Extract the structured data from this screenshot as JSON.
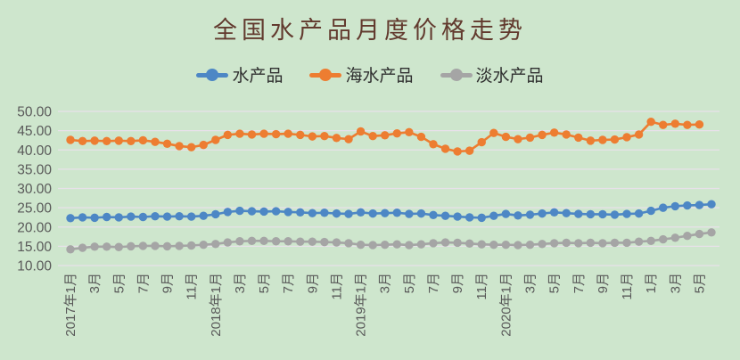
{
  "title": "全国水产品月度价格走势",
  "colors": {
    "background": "#cee6cd",
    "gridline": "#e8e1ea",
    "title_text": "#623a2e",
    "axis_text": "#595959",
    "legend_text": "#2f2f2f"
  },
  "chart_data": {
    "type": "line",
    "title": "全国水产品月度价格走势",
    "xlabel": "",
    "ylabel": "",
    "ylim": [
      10,
      50
    ],
    "y_ticks": [
      "50.00",
      "45.00",
      "40.00",
      "35.00",
      "30.00",
      "25.00",
      "20.00",
      "15.00",
      "10.00"
    ],
    "grid": "horizontal",
    "legend_position": "top",
    "n_points": 54,
    "tick_every": 2,
    "x_tick_labels": [
      "2017年1月",
      "3月",
      "5月",
      "7月",
      "9月",
      "11月",
      "2018年1月",
      "3月",
      "5月",
      "7月",
      "9月",
      "11月",
      "2019年1月",
      "3月",
      "5月",
      "7月",
      "9月",
      "11月",
      "2020年1月",
      "3月",
      "5月",
      "7月",
      "9月",
      "11月",
      "1月",
      "3月",
      "5月"
    ],
    "series": [
      {
        "name": "水产品",
        "color": "#4d87c5",
        "values": [
          22.3,
          22.5,
          22.4,
          22.6,
          22.5,
          22.7,
          22.6,
          22.8,
          22.7,
          22.8,
          22.7,
          22.9,
          23.3,
          23.9,
          24.2,
          24.1,
          24.0,
          24.1,
          23.9,
          23.8,
          23.6,
          23.7,
          23.5,
          23.4,
          23.8,
          23.5,
          23.6,
          23.7,
          23.4,
          23.5,
          23.1,
          22.9,
          22.7,
          22.5,
          22.4,
          22.9,
          23.4,
          23.0,
          23.2,
          23.5,
          23.8,
          23.6,
          23.4,
          23.3,
          23.3,
          23.2,
          23.4,
          23.5,
          24.2,
          25.0,
          25.4,
          25.6,
          25.7,
          25.9
        ]
      },
      {
        "name": "海水产品",
        "color": "#ed7d31",
        "values": [
          42.6,
          42.3,
          42.4,
          42.3,
          42.4,
          42.3,
          42.5,
          42.1,
          41.6,
          41.0,
          40.7,
          41.3,
          42.6,
          43.9,
          44.2,
          44.0,
          44.2,
          44.1,
          44.2,
          43.9,
          43.5,
          43.6,
          43.1,
          42.8,
          44.8,
          43.6,
          43.8,
          44.3,
          44.6,
          43.4,
          41.5,
          40.3,
          39.6,
          39.8,
          42.0,
          44.4,
          43.4,
          42.8,
          43.2,
          43.9,
          44.5,
          44.0,
          43.2,
          42.4,
          42.6,
          42.7,
          43.3,
          44.0,
          47.3,
          46.5,
          46.8,
          46.5,
          46.6,
          null
        ]
      },
      {
        "name": "淡水产品",
        "color": "#a5a5a5",
        "values": [
          14.2,
          14.6,
          14.9,
          14.9,
          14.8,
          15.0,
          15.1,
          15.1,
          15.0,
          15.1,
          15.2,
          15.4,
          15.6,
          16.0,
          16.3,
          16.4,
          16.4,
          16.3,
          16.3,
          16.2,
          16.2,
          16.1,
          16.0,
          15.8,
          15.4,
          15.3,
          15.4,
          15.5,
          15.3,
          15.5,
          15.8,
          16.0,
          15.9,
          15.7,
          15.5,
          15.4,
          15.4,
          15.3,
          15.4,
          15.6,
          15.8,
          15.9,
          15.8,
          15.9,
          15.8,
          15.9,
          15.9,
          16.2,
          16.4,
          16.8,
          17.2,
          17.7,
          18.2,
          18.6
        ]
      }
    ]
  }
}
